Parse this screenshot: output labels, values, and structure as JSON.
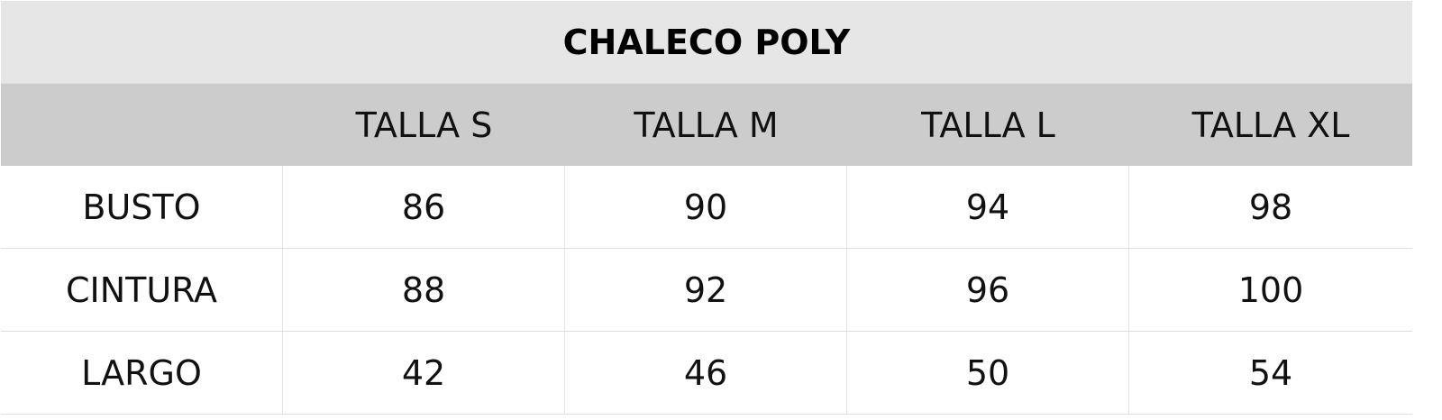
{
  "title": "CHALECO POLY",
  "headers": [
    "",
    "TALLA S",
    "TALLA M",
    "TALLA L",
    "TALLA XL"
  ],
  "rows": [
    {
      "label": "BUSTO",
      "values": [
        "86",
        "90",
        "94",
        "98"
      ]
    },
    {
      "label": "CINTURA",
      "values": [
        "88",
        "92",
        "96",
        "100"
      ]
    },
    {
      "label": "LARGO",
      "values": [
        "42",
        "46",
        "50",
        "54"
      ]
    }
  ],
  "colors": {
    "title_bg": "#e6e6e6",
    "header_bg": "#cccccc",
    "body_bg": "#ffffff"
  }
}
